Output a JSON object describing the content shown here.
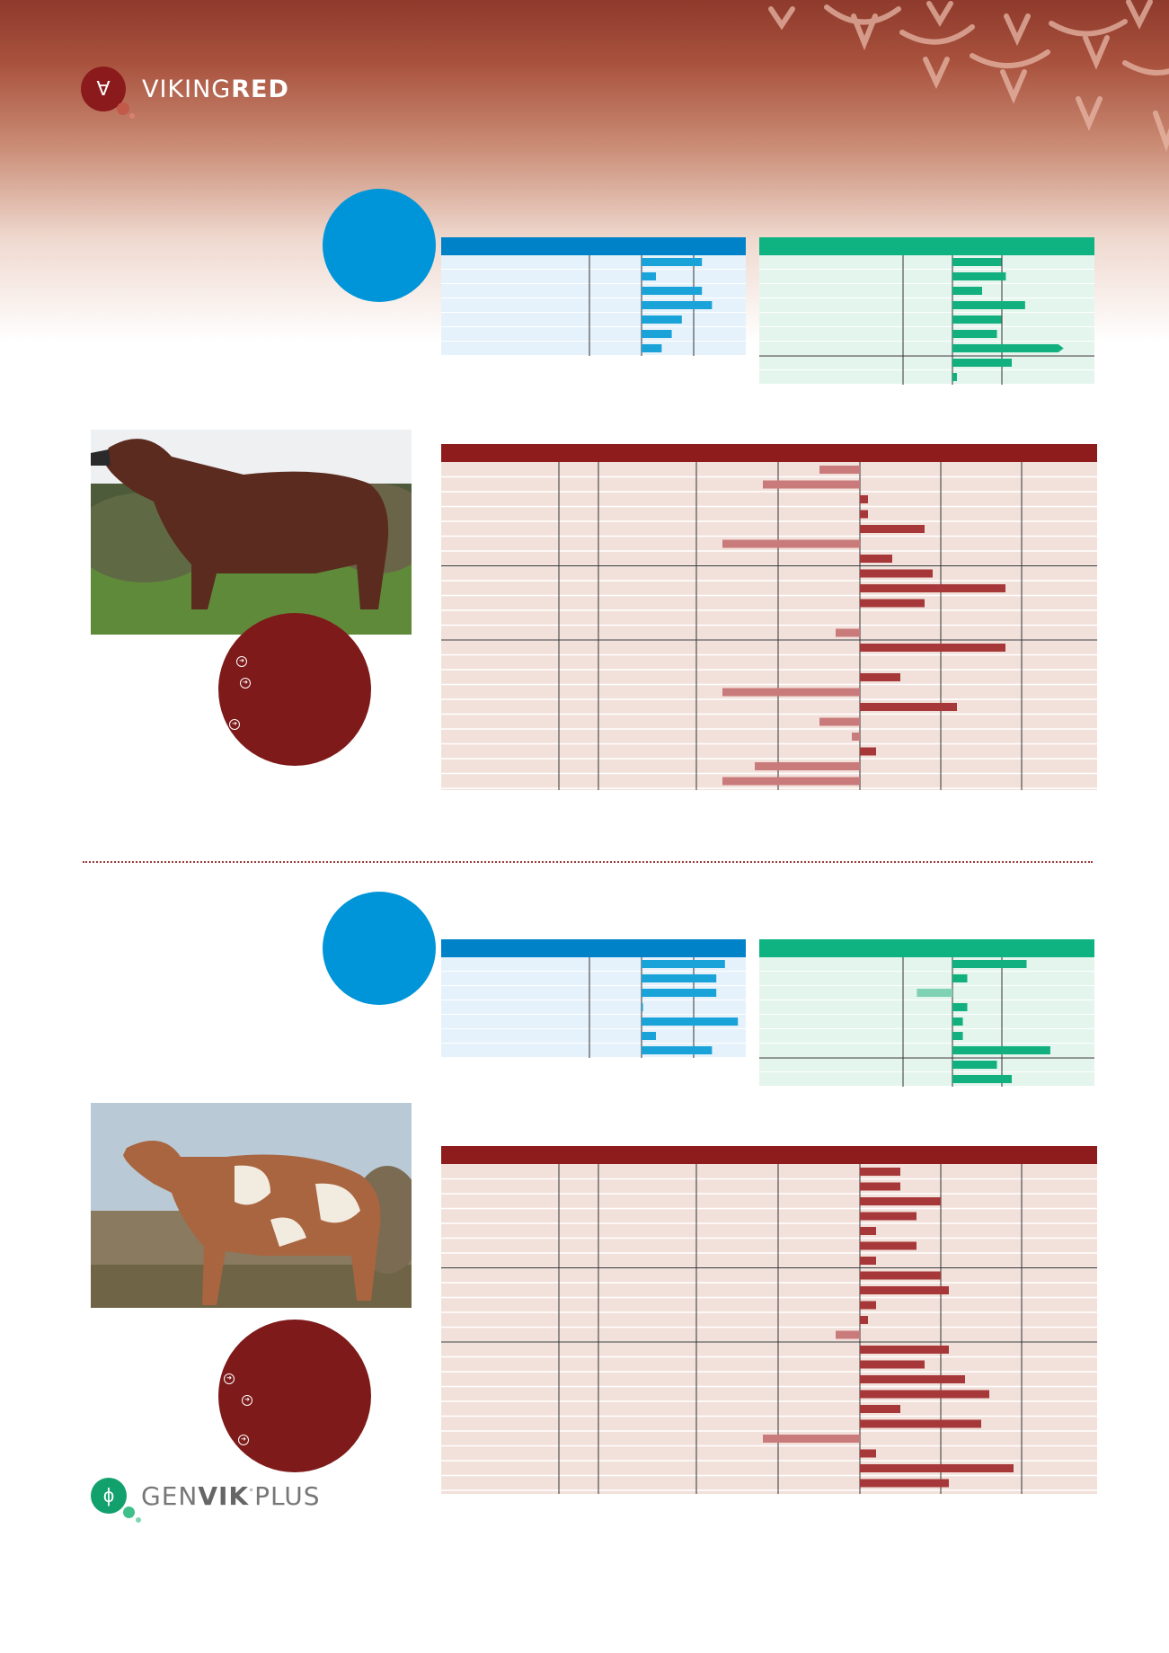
{
  "brand": {
    "logo_light": "VIKING",
    "logo_bold": "RED",
    "logo_mark": "∀"
  },
  "footer_brand": {
    "light": "GEN",
    "bold": "VIK",
    "plus": "PLUS",
    "mark": "ϕ"
  },
  "colors": {
    "brand_red": "#7e1a1a",
    "header_red": "#8f1c1c",
    "blue": "#0095d8",
    "blue_bar": "#1aa3d8",
    "green": "#0fb381",
    "green_bar": "#12b07e",
    "bar_pos": "#a7383a",
    "bar_neg": "#c97b7b"
  },
  "bulls": [
    {
      "blue_values": [
        4.2,
        1.0,
        4.2,
        4.9,
        2.8,
        2.1,
        1.4
      ],
      "green_values": [
        3.3,
        3.6,
        2.0,
        4.9,
        3.3,
        3.0,
        7.5,
        4.0,
        0.3
      ],
      "green_overflow_index": 6,
      "trait_values": [
        -5,
        -12,
        1,
        1,
        8,
        -17,
        4,
        9,
        18,
        8,
        0,
        -3,
        18,
        0,
        5,
        -17,
        12,
        -5,
        -1,
        2,
        -13,
        -17
      ],
      "group_breaks": [
        7,
        12
      ],
      "bullet_count": 3
    },
    {
      "blue_values": [
        5.8,
        5.2,
        5.2,
        0.1,
        6.7,
        1.0,
        4.9
      ],
      "green_values": [
        5.0,
        1.0,
        -2.4,
        1.0,
        0.7,
        0.7,
        6.6,
        3.0,
        4.0
      ],
      "green_overflow_index": -1,
      "trait_values": [
        5,
        5,
        10,
        7,
        2,
        7,
        2,
        10,
        11,
        2,
        1,
        -3,
        11,
        8,
        13,
        16,
        5,
        15,
        -12,
        2,
        19,
        11
      ],
      "group_breaks": [
        7,
        12
      ],
      "bullet_count": 3
    }
  ]
}
